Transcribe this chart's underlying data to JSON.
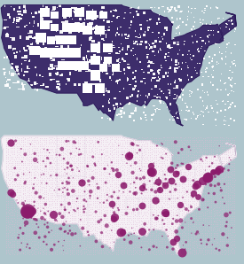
{
  "panel_bg": "#aec5cc",
  "top_map_fill": "#3d2d6b",
  "top_map_edge": "#2a1858",
  "bottom_map_fill": "#f5f0f5",
  "bottom_map_edge": "#c0b0c8",
  "bubble_color": "#8b1a6b",
  "dot_color_light": "#e0b8d8",
  "dot_color_med": "#c078a8",
  "state_border_top": "#4a3888",
  "state_border_bottom": "#ccc0d8",
  "xlim": [
    -125,
    -65
  ],
  "ylim": [
    24,
    50
  ]
}
